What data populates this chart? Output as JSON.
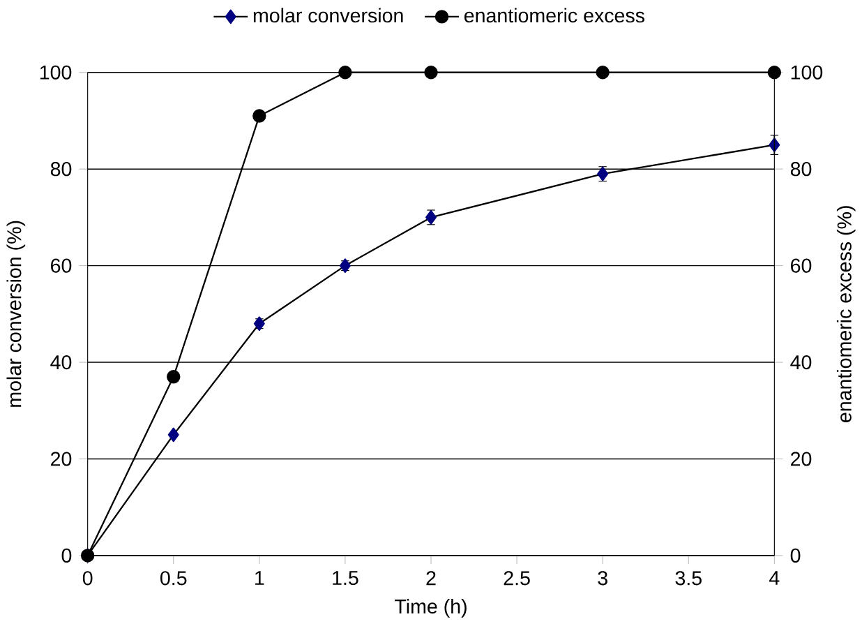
{
  "chart_data": {
    "type": "line",
    "xlabel": "Time (h)",
    "ylabel": "molar conversion (%)",
    "y2label": "enantiomeric excess (%)",
    "x": [
      0,
      0.5,
      1,
      1.5,
      2,
      3,
      4
    ],
    "series": [
      {
        "name": "molar conversion",
        "color": "#000080",
        "marker": "diamond",
        "values": [
          0,
          25,
          48,
          60,
          70,
          79,
          85
        ],
        "errors": [
          null,
          null,
          1,
          1,
          1.5,
          1.5,
          2
        ]
      },
      {
        "name": "enantiomeric excess",
        "color": "#000000",
        "marker": "circle",
        "axis": "y2",
        "values": [
          0,
          37,
          91,
          100,
          100,
          100,
          100
        ]
      }
    ],
    "xlim": [
      0,
      4
    ],
    "xticks": [
      0,
      0.5,
      1,
      1.5,
      2,
      2.5,
      3,
      3.5,
      4
    ],
    "ylim": [
      0,
      100
    ],
    "yticks": [
      0,
      20,
      40,
      60,
      80,
      100
    ],
    "y2lim": [
      0,
      100
    ],
    "y2ticks": [
      0,
      20,
      40,
      60,
      80,
      100
    ],
    "grid": "y",
    "legend": "top"
  }
}
